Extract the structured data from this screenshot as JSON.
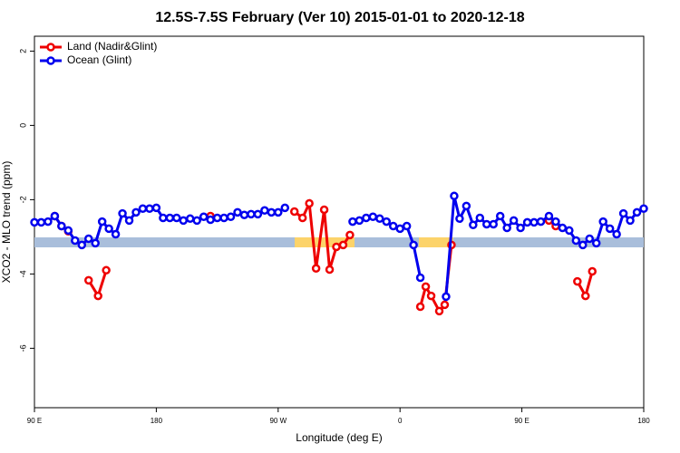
{
  "chart_data": {
    "type": "line",
    "title": "12.5S-7.5S February (Ver 10)   2015-01-01 to 2020-12-18",
    "x_label": "Longitude (deg E)",
    "y_label": "XCO2 - MLO trend (ppm)",
    "xlim": [
      90,
      540
    ],
    "xticks": [
      {
        "value": 90,
        "label": "90 E"
      },
      180,
      {
        "value": 270,
        "label": "90 W"
      },
      {
        "value": 360,
        "label": "0"
      },
      {
        "value": 450,
        "label": "90 E"
      },
      {
        "value": 540,
        "label": "180"
      }
    ],
    "ylim": [
      -7.6,
      2.4
    ],
    "yticks": [
      2,
      0,
      -2,
      -4,
      -6
    ],
    "legend": "top-left",
    "series": [
      {
        "name": "Land (Nadir&Glint)",
        "color": "#ee0000",
        "x": [
          105,
          110,
          115,
          120,
          130,
          137,
          143,
          150,
          220,
          250,
          282,
          288,
          293,
          298,
          304,
          308,
          313,
          318,
          323,
          350,
          375,
          379,
          383,
          389,
          393,
          398,
          430,
          470,
          475,
          480,
          491,
          497,
          502
        ],
        "values": [
          -2.44,
          -2.71,
          -2.85,
          null,
          -4.17,
          -4.59,
          -3.9,
          null,
          -2.44,
          null,
          -2.32,
          -2.49,
          -2.1,
          -3.85,
          -2.27,
          -3.88,
          -3.27,
          -3.22,
          -2.95,
          null,
          -4.88,
          -4.34,
          -4.59,
          -5.0,
          -4.83,
          -3.22,
          null,
          -2.56,
          -2.71,
          null,
          -4.2,
          -4.59,
          -3.93
        ]
      },
      {
        "name": "Ocean (Glint)",
        "color": "#0000ee",
        "x": [
          90,
          95,
          100,
          105,
          110,
          115,
          120,
          125,
          130,
          135,
          140,
          145,
          150,
          155,
          160,
          165,
          170,
          175,
          180,
          185,
          190,
          195,
          200,
          205,
          210,
          215,
          220,
          225,
          230,
          235,
          240,
          245,
          250,
          255,
          260,
          265,
          270,
          275,
          300,
          325,
          330,
          335,
          340,
          345,
          350,
          355,
          360,
          365,
          370,
          375,
          385,
          394,
          400,
          404,
          409,
          414,
          419,
          424,
          429,
          434,
          439,
          444,
          449,
          454,
          459,
          464,
          470,
          475,
          480,
          485,
          490,
          495,
          500,
          505,
          510,
          515,
          520,
          525,
          530,
          535,
          540
        ],
        "values": [
          -2.61,
          -2.61,
          -2.59,
          -2.44,
          -2.71,
          -2.83,
          -3.1,
          -3.22,
          -3.05,
          -3.17,
          -2.59,
          -2.78,
          -2.93,
          -2.37,
          -2.56,
          -2.34,
          -2.24,
          -2.24,
          -2.22,
          -2.49,
          -2.49,
          -2.49,
          -2.56,
          -2.51,
          -2.56,
          -2.46,
          -2.54,
          -2.49,
          -2.49,
          -2.46,
          -2.34,
          -2.41,
          -2.39,
          -2.39,
          -2.29,
          -2.34,
          -2.34,
          -2.22,
          null,
          -2.59,
          -2.56,
          -2.49,
          -2.46,
          -2.51,
          -2.59,
          -2.71,
          -2.78,
          -2.71,
          -3.22,
          -4.1,
          null,
          -4.61,
          -1.9,
          -2.51,
          -2.17,
          -2.68,
          -2.49,
          -2.66,
          -2.66,
          -2.44,
          -2.76,
          -2.56,
          -2.76,
          -2.61,
          -2.61,
          -2.59,
          -2.44,
          -2.59,
          -2.76,
          -2.83,
          -3.1,
          -3.22,
          -3.05,
          -3.17,
          -2.59,
          -2.78,
          -2.93,
          -2.37,
          -2.56,
          -2.34,
          -2.24
        ]
      }
    ]
  }
}
